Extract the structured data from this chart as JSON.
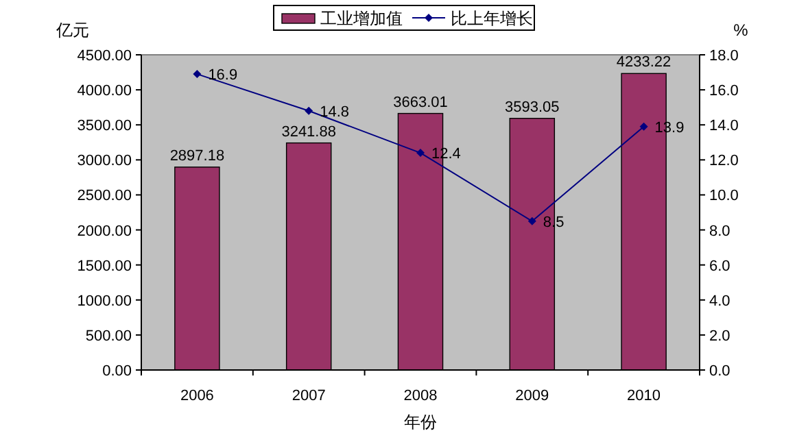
{
  "chart_data": {
    "type": "bar",
    "categories": [
      "2006",
      "2007",
      "2008",
      "2009",
      "2010"
    ],
    "xlabel": "年份",
    "ylabel": "亿元",
    "y2label": "%",
    "series": [
      {
        "name": "工业增加值",
        "color": "#993366",
        "values": [
          2897.18,
          3241.88,
          3663.01,
          3593.05,
          4233.22
        ]
      },
      {
        "name": "比上年增长",
        "type": "line",
        "color": "#000080",
        "axis": "y2",
        "marker": "diamond",
        "values": [
          16.9,
          14.8,
          12.4,
          8.5,
          13.9
        ]
      }
    ],
    "ylim": [
      0,
      4500
    ],
    "yticks": [
      {
        "value": 0,
        "label": "0.00"
      },
      {
        "value": 500,
        "label": "500.00"
      },
      {
        "value": 1000,
        "label": "1000.00"
      },
      {
        "value": 1500,
        "label": "1500.00"
      },
      {
        "value": 2000,
        "label": "2000.00"
      },
      {
        "value": 2500,
        "label": "2500.00"
      },
      {
        "value": 3000,
        "label": "3000.00"
      },
      {
        "value": 3500,
        "label": "3500.00"
      },
      {
        "value": 4000,
        "label": "4000.00"
      },
      {
        "value": 4500,
        "label": "4500.00"
      }
    ],
    "y2lim": [
      0,
      18
    ],
    "y2ticks": [
      {
        "value": 0,
        "label": "0.0"
      },
      {
        "value": 2,
        "label": "2.0"
      },
      {
        "value": 4,
        "label": "4.0"
      },
      {
        "value": 6,
        "label": "6.0"
      },
      {
        "value": 8,
        "label": "8.0"
      },
      {
        "value": 10,
        "label": "10.0"
      },
      {
        "value": 12,
        "label": "12.0"
      },
      {
        "value": 14,
        "label": "14.0"
      },
      {
        "value": 16,
        "label": "16.0"
      },
      {
        "value": 18,
        "label": "18.0"
      }
    ],
    "data_labels": true,
    "grid": false,
    "legend": "top"
  }
}
